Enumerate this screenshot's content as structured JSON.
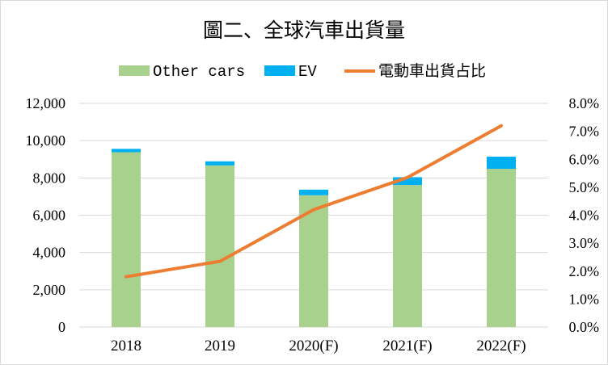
{
  "chart_data": {
    "type": "bar",
    "title": "圖二、全球汽車出貨量",
    "categories": [
      "2018",
      "2019",
      "2020(F)",
      "2021(F)",
      "2022(F)"
    ],
    "series": [
      {
        "name": "Other cars",
        "kind": "stacked-bar",
        "axis": "left",
        "color": "#a9d18e",
        "values": [
          9380,
          8670,
          7070,
          7620,
          8490
        ]
      },
      {
        "name": "EV",
        "kind": "stacked-bar",
        "axis": "left",
        "color": "#00b0f0",
        "values": [
          180,
          220,
          300,
          420,
          650
        ]
      },
      {
        "name": "電動車出貨占比",
        "kind": "line",
        "axis": "right",
        "color": "#ed7d31",
        "values": [
          0.018,
          0.0235,
          0.042,
          0.0535,
          0.072
        ]
      }
    ],
    "y_left": {
      "min": 0,
      "max": 12000,
      "step": 2000,
      "tick_labels": [
        "0",
        "2,000",
        "4,000",
        "6,000",
        "8,000",
        "10,000",
        "12,000"
      ]
    },
    "y_right": {
      "min": 0,
      "max": 0.08,
      "step": 0.01,
      "tick_labels": [
        "0.0%",
        "1.0%",
        "2.0%",
        "3.0%",
        "4.0%",
        "5.0%",
        "6.0%",
        "7.0%",
        "8.0%"
      ]
    },
    "grid": true,
    "legend_position": "top"
  }
}
